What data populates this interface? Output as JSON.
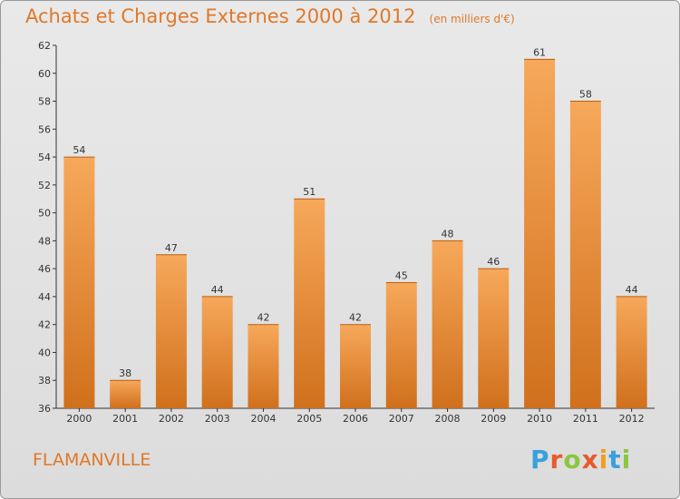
{
  "header": {
    "title": "Achats et Charges Externes 2000 à 2012",
    "unit": "(en milliers d'€)"
  },
  "footer": {
    "town": "FLAMANVILLE",
    "brand": "Proxiti"
  },
  "colors": {
    "accent": "#e07828",
    "bar_light": "#f7a85a",
    "bar_dark": "#d0701c"
  },
  "chart_data": {
    "type": "bar",
    "categories": [
      "2000",
      "2001",
      "2002",
      "2003",
      "2004",
      "2005",
      "2006",
      "2007",
      "2008",
      "2009",
      "2010",
      "2011",
      "2012"
    ],
    "values": [
      54,
      38,
      47,
      44,
      42,
      51,
      42,
      45,
      48,
      46,
      61,
      58,
      44
    ],
    "ylim": [
      36,
      62
    ],
    "yticks": [
      36,
      38,
      40,
      42,
      44,
      46,
      48,
      50,
      52,
      54,
      56,
      58,
      60,
      62
    ],
    "grid": false,
    "data_labels": true
  }
}
